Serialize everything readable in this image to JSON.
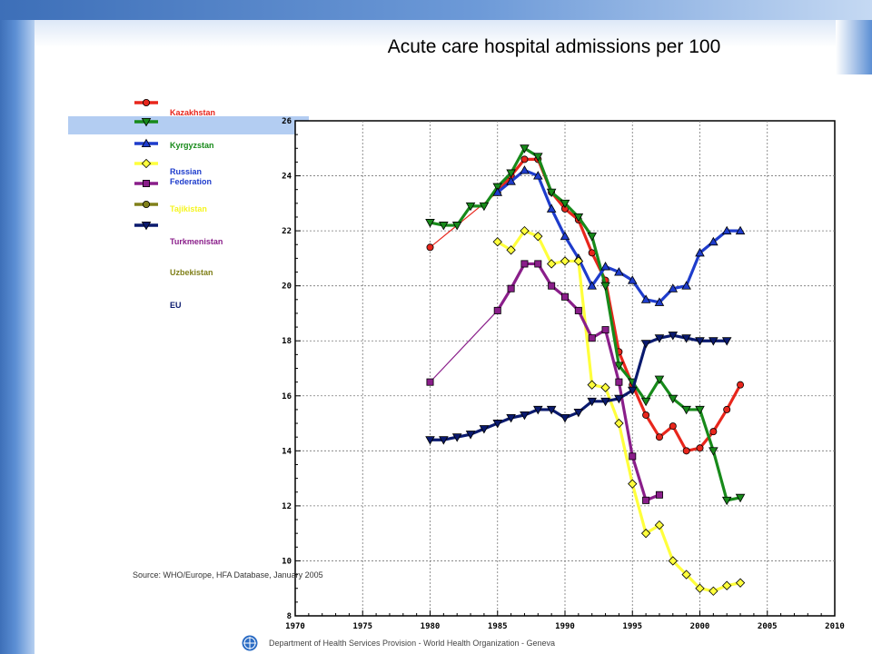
{
  "slide": {
    "title": "Acute care hospital admissions per 100",
    "source": "Source: WHO/Europe, HFA Database, January 2005",
    "footer": "Department of Health Services Provision - World Health Organization - Geneva"
  },
  "chart_data": {
    "type": "line",
    "title": "Acute care hospital admissions per 100",
    "xlabel": "",
    "ylabel": "",
    "xlim": [
      1970,
      2010
    ],
    "ylim": [
      8,
      26
    ],
    "xticks": [
      1970,
      1975,
      1980,
      1985,
      1990,
      1995,
      2000,
      2005,
      2010
    ],
    "yticks": [
      8,
      10,
      12,
      14,
      16,
      18,
      20,
      22,
      24,
      26
    ],
    "grid": true,
    "legend_placement": "left",
    "legend": [
      {
        "label": "Kazakhstan",
        "color": "#e8261c",
        "marker": "circle"
      },
      {
        "label": "Kyrgyzstan",
        "color": "#178a1a",
        "marker": "triangle-down"
      },
      {
        "label": "Russian Federation",
        "color": "#1e3ccc",
        "marker": "triangle-up"
      },
      {
        "label": "Tajikistan",
        "color": "#ffff3c",
        "marker": "diamond"
      },
      {
        "label": "Turkmenistan",
        "color": "#8a1e8a",
        "marker": "square"
      },
      {
        "label": "Uzbekistan",
        "color": "#80801a",
        "marker": "circle"
      },
      {
        "label": "EU",
        "color": "#0a1a6e",
        "marker": "triangle-down"
      }
    ],
    "legend_label_colors": [
      "#e8261c",
      "#178a1a",
      "#1e3ccc",
      "#f5f520",
      "#8a1e8a",
      "#80801a",
      "#0a1a6e"
    ],
    "series": [
      {
        "color": "#e8261c",
        "marker": "circle",
        "points": [
          [
            1980,
            21.4
          ],
          [
            1985,
            23.4
          ],
          [
            1986,
            24.0
          ],
          [
            1987,
            24.6
          ],
          [
            1988,
            24.6
          ],
          [
            1989,
            23.4
          ],
          [
            1990,
            22.8
          ],
          [
            1991,
            22.4
          ],
          [
            1992,
            21.2
          ],
          [
            1993,
            20.2
          ],
          [
            1994,
            17.6
          ],
          [
            1995,
            16.4
          ],
          [
            1996,
            15.3
          ],
          [
            1997,
            14.5
          ],
          [
            1998,
            14.9
          ],
          [
            1999,
            14.0
          ],
          [
            2000,
            14.1
          ],
          [
            2001,
            14.7
          ],
          [
            2002,
            15.5
          ],
          [
            2003,
            16.4
          ]
        ]
      },
      {
        "color": "#178a1a",
        "marker": "triangle-down",
        "points": [
          [
            1980,
            22.3
          ],
          [
            1981,
            22.2
          ],
          [
            1982,
            22.2
          ],
          [
            1983,
            22.9
          ],
          [
            1984,
            22.9
          ],
          [
            1985,
            23.6
          ],
          [
            1986,
            24.1
          ],
          [
            1987,
            25.0
          ],
          [
            1988,
            24.7
          ],
          [
            1989,
            23.4
          ],
          [
            1990,
            23.0
          ],
          [
            1991,
            22.5
          ],
          [
            1992,
            21.8
          ],
          [
            1993,
            20.0
          ],
          [
            1994,
            17.1
          ],
          [
            1995,
            16.5
          ],
          [
            1996,
            15.8
          ],
          [
            1997,
            16.6
          ],
          [
            1998,
            15.9
          ],
          [
            1999,
            15.5
          ],
          [
            2000,
            15.5
          ],
          [
            2001,
            14.0
          ],
          [
            2002,
            12.2
          ],
          [
            2003,
            12.3
          ]
        ]
      },
      {
        "color": "#1e3ccc",
        "marker": "triangle-up",
        "points": [
          [
            1985,
            23.4
          ],
          [
            1986,
            23.8
          ],
          [
            1987,
            24.2
          ],
          [
            1988,
            24.0
          ],
          [
            1989,
            22.8
          ],
          [
            1990,
            21.8
          ],
          [
            1991,
            21.0
          ],
          [
            1992,
            20.0
          ],
          [
            1993,
            20.7
          ],
          [
            1994,
            20.5
          ],
          [
            1995,
            20.2
          ],
          [
            1996,
            19.5
          ],
          [
            1997,
            19.4
          ],
          [
            1998,
            19.9
          ],
          [
            1999,
            20.0
          ],
          [
            2000,
            21.2
          ],
          [
            2001,
            21.6
          ],
          [
            2002,
            22.0
          ],
          [
            2003,
            22.0
          ]
        ]
      },
      {
        "color": "#ffff3c",
        "marker": "diamond",
        "points": [
          [
            1985,
            21.6
          ],
          [
            1986,
            21.3
          ],
          [
            1987,
            22.0
          ],
          [
            1988,
            21.8
          ],
          [
            1989,
            20.8
          ],
          [
            1990,
            20.9
          ],
          [
            1991,
            20.9
          ],
          [
            1992,
            16.4
          ],
          [
            1993,
            16.3
          ],
          [
            1994,
            15.0
          ],
          [
            1995,
            12.8
          ],
          [
            1996,
            11.0
          ],
          [
            1997,
            11.3
          ],
          [
            1998,
            10.0
          ],
          [
            1999,
            9.5
          ],
          [
            2000,
            9.0
          ],
          [
            2001,
            8.9
          ],
          [
            2002,
            9.1
          ],
          [
            2003,
            9.2
          ]
        ]
      },
      {
        "color": "#8a1e8a",
        "marker": "square",
        "points": [
          [
            1980,
            16.5
          ],
          [
            1985,
            19.1
          ],
          [
            1986,
            19.9
          ],
          [
            1987,
            20.8
          ],
          [
            1988,
            20.8
          ],
          [
            1989,
            20.0
          ],
          [
            1990,
            19.6
          ],
          [
            1991,
            19.1
          ],
          [
            1992,
            18.1
          ],
          [
            1993,
            18.4
          ],
          [
            1994,
            16.5
          ],
          [
            1995,
            13.8
          ],
          [
            1996,
            12.2
          ],
          [
            1997,
            12.4
          ]
        ]
      },
      {
        "color": "#0a1a6e",
        "marker": "triangle-down",
        "points": [
          [
            1980,
            14.4
          ],
          [
            1981,
            14.4
          ],
          [
            1982,
            14.5
          ],
          [
            1983,
            14.6
          ],
          [
            1984,
            14.8
          ],
          [
            1985,
            15.0
          ],
          [
            1986,
            15.2
          ],
          [
            1987,
            15.3
          ],
          [
            1988,
            15.5
          ],
          [
            1989,
            15.5
          ],
          [
            1990,
            15.2
          ],
          [
            1991,
            15.4
          ],
          [
            1992,
            15.8
          ],
          [
            1993,
            15.8
          ],
          [
            1994,
            15.9
          ],
          [
            1995,
            16.2
          ],
          [
            1996,
            17.9
          ],
          [
            1997,
            18.1
          ],
          [
            1998,
            18.2
          ],
          [
            1999,
            18.1
          ],
          [
            2000,
            18.0
          ],
          [
            2001,
            18.0
          ],
          [
            2002,
            18.0
          ]
        ]
      }
    ]
  }
}
